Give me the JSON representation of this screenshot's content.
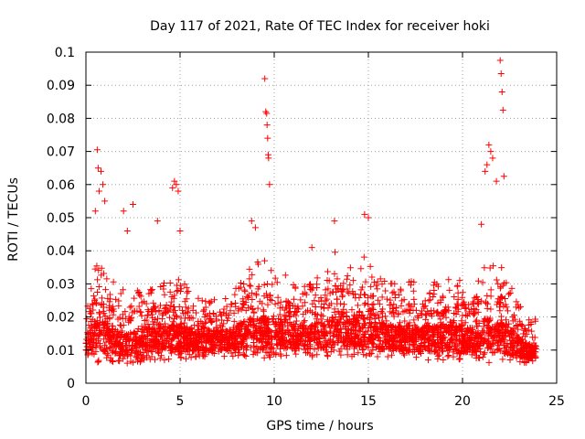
{
  "chart_data": {
    "type": "scatter",
    "title": "Day 117 of 2021, Rate Of TEC Index for receiver hoki",
    "xlabel": "GPS time / hours",
    "ylabel": "ROTI / TECUs",
    "xlim": [
      0,
      25
    ],
    "ylim": [
      0,
      0.1
    ],
    "xticks": [
      0,
      5,
      10,
      15,
      20,
      25
    ],
    "yticks": [
      0,
      0.01,
      0.02,
      0.03,
      0.04,
      0.05,
      0.06,
      0.07,
      0.08,
      0.09,
      0.1
    ],
    "grid": true,
    "marker": "+",
    "color": "#ff0000",
    "series": [
      {
        "x": [
          0.5,
          0.6,
          0.65,
          0.7,
          0.8,
          0.9,
          1.0,
          2.0,
          2.2,
          2.5,
          3.8,
          4.6,
          4.7,
          4.8,
          4.9,
          5.0,
          8.8,
          9.0,
          9.5,
          9.55,
          9.6,
          9.62,
          9.65,
          9.68,
          9.7,
          9.75,
          12.0,
          13.2,
          14.8,
          15.0,
          21.0,
          21.2,
          21.3,
          21.4,
          21.5,
          21.6,
          21.8,
          22.0,
          22.05,
          22.1,
          22.15,
          22.2
        ],
        "y": [
          0.052,
          0.0705,
          0.065,
          0.058,
          0.064,
          0.06,
          0.055,
          0.052,
          0.046,
          0.054,
          0.049,
          0.059,
          0.061,
          0.06,
          0.058,
          0.046,
          0.049,
          0.047,
          0.092,
          0.082,
          0.0815,
          0.078,
          0.074,
          0.069,
          0.068,
          0.06,
          0.041,
          0.049,
          0.051,
          0.05,
          0.048,
          0.064,
          0.066,
          0.072,
          0.07,
          0.068,
          0.061,
          0.0975,
          0.0935,
          0.088,
          0.0825,
          0.0625
        ],
        "x_envelope_hours": [
          0,
          0.25,
          0.6,
          1.0,
          1.8,
          2.5,
          3.5,
          4.5,
          5.2,
          6.0,
          7.0,
          8.0,
          8.6,
          9.2,
          9.6,
          10.0,
          10.8,
          11.5,
          12.2,
          13.0,
          13.3,
          14.0,
          14.8,
          15.5,
          16.5,
          17.5,
          18.5,
          19.5,
          20.2,
          20.8,
          21.3,
          21.8,
          22.3,
          22.8,
          23.3,
          23.9
        ],
        "upper_envelope": [
          0.024,
          0.03,
          0.035,
          0.033,
          0.028,
          0.027,
          0.029,
          0.031,
          0.03,
          0.025,
          0.026,
          0.028,
          0.034,
          0.036,
          0.038,
          0.033,
          0.031,
          0.029,
          0.031,
          0.034,
          0.04,
          0.036,
          0.037,
          0.031,
          0.029,
          0.03,
          0.03,
          0.031,
          0.029,
          0.031,
          0.037,
          0.035,
          0.033,
          0.026,
          0.02,
          0.019
        ],
        "lower_envelope": [
          0.007,
          0.006,
          0.006,
          0.007,
          0.006,
          0.006,
          0.007,
          0.007,
          0.007,
          0.008,
          0.008,
          0.008,
          0.008,
          0.007,
          0.007,
          0.008,
          0.008,
          0.008,
          0.008,
          0.008,
          0.008,
          0.008,
          0.008,
          0.008,
          0.008,
          0.007,
          0.007,
          0.007,
          0.007,
          0.007,
          0.006,
          0.006,
          0.006,
          0.006,
          0.006,
          0.005
        ]
      }
    ]
  }
}
